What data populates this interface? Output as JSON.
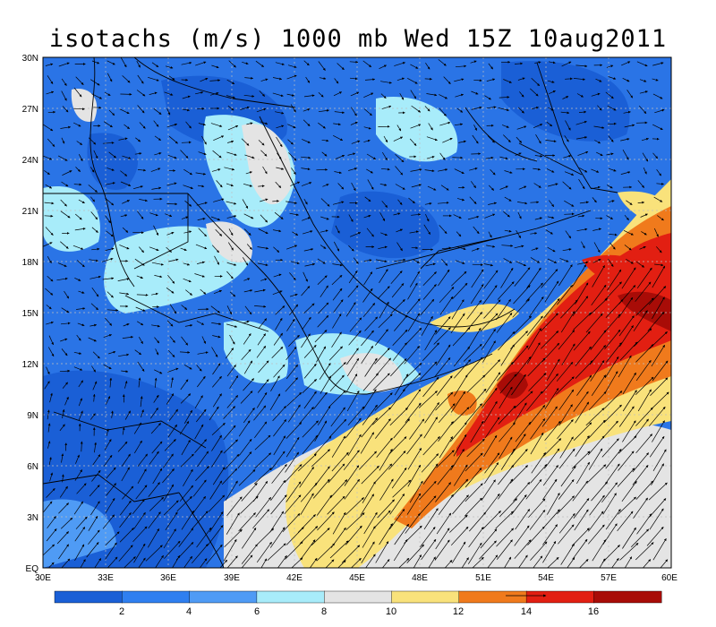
{
  "title": "isotachs (m/s) 1000 mb Wed 15Z 10aug2011",
  "map": {
    "lon_ticks": [
      "30E",
      "33E",
      "36E",
      "39E",
      "42E",
      "45E",
      "48E",
      "51E",
      "54E",
      "57E",
      "60E"
    ],
    "lat_ticks": [
      "EQ",
      "3N",
      "6N",
      "9N",
      "12N",
      "15N",
      "18N",
      "21N",
      "24N",
      "27N",
      "30N"
    ],
    "lon_range": [
      30,
      60
    ],
    "lat_range": [
      0,
      30
    ],
    "grid": true,
    "vectors": true
  },
  "colorbar": {
    "labels": [
      "2",
      "4",
      "6",
      "8",
      "10",
      "12",
      "14",
      "16"
    ],
    "colors": [
      "#1a5fd6",
      "#2f7ff0",
      "#4f9bf5",
      "#a8ecfa",
      "#e4e4e4",
      "#f9e27b",
      "#f07a1c",
      "#e21f12",
      "#a80c07"
    ]
  }
}
